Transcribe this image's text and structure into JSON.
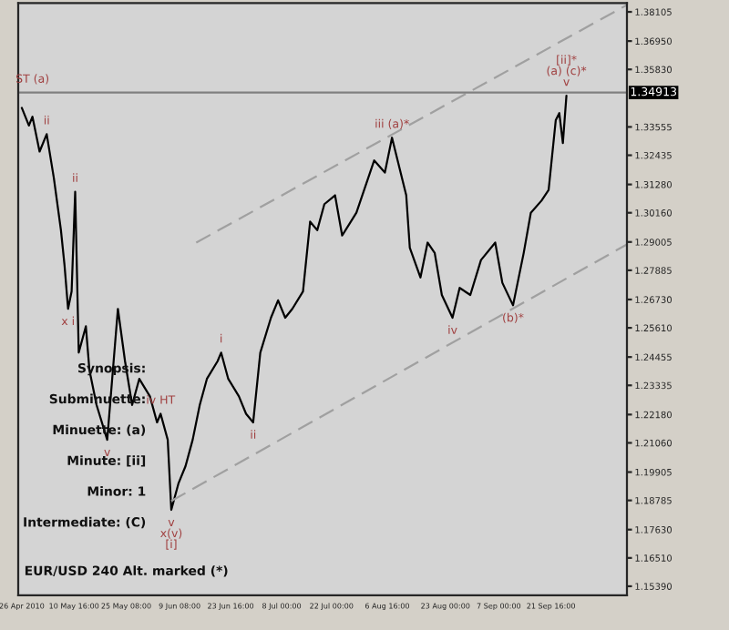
{
  "chart_data": {
    "type": "line",
    "x": [
      "2010-04-26",
      "2010-04-28",
      "2010-04-29",
      "2010-05-01",
      "2010-05-03",
      "2010-05-05",
      "2010-05-07",
      "2010-05-08",
      "2010-05-09",
      "2010-05-10",
      "2010-05-11",
      "2010-05-12",
      "2010-05-14",
      "2010-05-15",
      "2010-05-17",
      "2010-05-20",
      "2010-05-23",
      "2010-05-25",
      "2010-05-27",
      "2010-05-29",
      "2010-06-01",
      "2010-06-03",
      "2010-06-04",
      "2010-06-06",
      "2010-06-07",
      "2010-06-09",
      "2010-06-11",
      "2010-06-13",
      "2010-06-15",
      "2010-06-17",
      "2010-06-20",
      "2010-06-21",
      "2010-06-23",
      "2010-06-26",
      "2010-06-28",
      "2010-06-30",
      "2010-07-02",
      "2010-07-05",
      "2010-07-07",
      "2010-07-09",
      "2010-07-11",
      "2010-07-14",
      "2010-07-16",
      "2010-07-18",
      "2010-07-20",
      "2010-07-23",
      "2010-07-25",
      "2010-07-29",
      "2010-08-03",
      "2010-08-06",
      "2010-08-08",
      "2010-08-12",
      "2010-08-13",
      "2010-08-16",
      "2010-08-18",
      "2010-08-20",
      "2010-08-22",
      "2010-08-25",
      "2010-08-27",
      "2010-08-30",
      "2010-09-02",
      "2010-09-06",
      "2010-09-08",
      "2010-09-11",
      "2010-09-14",
      "2010-09-16",
      "2010-09-19",
      "2010-09-21",
      "2010-09-23",
      "2010-09-24",
      "2010-09-25",
      "2010-09-26"
    ],
    "series": [
      {
        "color": "#000000",
        "values": [
          1.3431,
          1.3361,
          1.3396,
          1.3258,
          1.3327,
          1.3154,
          1.2947,
          1.2809,
          1.2636,
          1.2705,
          1.3099,
          1.2463,
          1.2567,
          1.2394,
          1.2256,
          1.2118,
          1.2636,
          1.2429,
          1.2256,
          1.2359,
          1.229,
          1.2187,
          1.2221,
          1.2118,
          1.1841,
          1.1945,
          1.2014,
          1.2118,
          1.2256,
          1.2359,
          1.2429,
          1.2463,
          1.2359,
          1.229,
          1.2221,
          1.2187,
          1.2463,
          1.2601,
          1.267,
          1.2601,
          1.2636,
          1.2705,
          1.2981,
          1.2947,
          1.305,
          1.3085,
          1.2926,
          1.3016,
          1.3223,
          1.3175,
          1.3313,
          1.3085,
          1.2878,
          1.276,
          1.2898,
          1.2857,
          1.2691,
          1.2601,
          1.2719,
          1.2691,
          1.2829,
          1.2898,
          1.2739,
          1.265,
          1.2857,
          1.3016,
          1.3064,
          1.3106,
          1.3382,
          1.341,
          1.3292,
          1.3479
        ]
      },
      {
        "type": "line",
        "color": "#a0a0a0",
        "line_style": "dashed",
        "x": [
          "2010-06-14",
          "2010-10-13"
        ],
        "values": [
          1.2898,
          1.3838
        ]
      },
      {
        "type": "line",
        "color": "#a0a0a0",
        "line_style": "dashed",
        "x": [
          "2010-06-07",
          "2010-10-13"
        ],
        "values": [
          1.1876,
          1.2891
        ]
      }
    ],
    "xlim": [
      "2010-04-25",
      "2010-10-13"
    ],
    "xticks": [
      {
        "value": "2010-04-26",
        "label": "26 Apr 2010"
      },
      {
        "value": "2010-05-10T16:00",
        "label": "10 May 16:00"
      },
      {
        "value": "2010-05-25T08:00",
        "label": "25 May 08:00"
      },
      {
        "value": "2010-06-09T08:00",
        "label": "9 Jun 08:00"
      },
      {
        "value": "2010-06-23T16:00",
        "label": "23 Jun 16:00"
      },
      {
        "value": "2010-07-08T00:00",
        "label": "8 Jul 00:00"
      },
      {
        "value": "2010-07-22T00:00",
        "label": "22 Jul 00:00"
      },
      {
        "value": "2010-08-06T16:00",
        "label": "6 Aug 16:00"
      },
      {
        "value": "2010-08-23T00:00",
        "label": "23 Aug 00:00"
      },
      {
        "value": "2010-09-07T00:00",
        "label": "7 Sep 00:00"
      },
      {
        "value": "2010-09-21T16:00",
        "label": "21 Sep 16:00"
      }
    ],
    "ylim": [
      1.1503,
      1.3845
    ],
    "yticks": [
      {
        "value": 1.1539,
        "label": "1.15390"
      },
      {
        "value": 1.1651,
        "label": "1.16510"
      },
      {
        "value": 1.1763,
        "label": "1.17630"
      },
      {
        "value": 1.18785,
        "label": "1.18785"
      },
      {
        "value": 1.19905,
        "label": "1.19905"
      },
      {
        "value": 1.2106,
        "label": "1.21060"
      },
      {
        "value": 1.2218,
        "label": "1.22180"
      },
      {
        "value": 1.23335,
        "label": "1.23335"
      },
      {
        "value": 1.24455,
        "label": "1.24455"
      },
      {
        "value": 1.2561,
        "label": "1.25610"
      },
      {
        "value": 1.2673,
        "label": "1.26730"
      },
      {
        "value": 1.27885,
        "label": "1.27885"
      },
      {
        "value": 1.29005,
        "label": "1.29005"
      },
      {
        "value": 1.3016,
        "label": "1.30160"
      },
      {
        "value": 1.3128,
        "label": "1.31280"
      },
      {
        "value": 1.32435,
        "label": "1.32435"
      },
      {
        "value": 1.33555,
        "label": "1.33555"
      },
      {
        "value": 1.3583,
        "label": "1.35830"
      },
      {
        "value": 1.3695,
        "label": "1.36950"
      },
      {
        "value": 1.38105,
        "label": "1.38105"
      }
    ],
    "ref_lines": [
      {
        "axis": "y",
        "value": 1.34913,
        "label": "1.34913",
        "color": "#808080"
      }
    ],
    "grid": false,
    "legend": false,
    "annotations": [
      {
        "text": "ST (a)",
        "x": "2010-04-29",
        "y": 1.34913
      },
      {
        "text": "ii",
        "x": "2010-05-03",
        "y": 1.3327
      },
      {
        "text": "ii",
        "x": "2010-05-11",
        "y": 1.3099
      },
      {
        "text": "x i",
        "x": "2010-05-09",
        "y": 1.2636
      },
      {
        "text": "v",
        "x": "2010-05-20",
        "y": 1.2118
      },
      {
        "text": "iv HT",
        "x": "2010-06-04",
        "y": 1.2221
      },
      {
        "text": "v\nx(v)\n[i]",
        "x": "2010-06-07",
        "y": 1.1841
      },
      {
        "text": "i",
        "x": "2010-06-21",
        "y": 1.2463
      },
      {
        "text": "ii",
        "x": "2010-06-30",
        "y": 1.2187
      },
      {
        "text": "iii (a)*",
        "x": "2010-08-08",
        "y": 1.3313
      },
      {
        "text": "iv",
        "x": "2010-08-25",
        "y": 1.2601
      },
      {
        "text": "(b)*",
        "x": "2010-09-11",
        "y": 1.265
      },
      {
        "text": "[ii]*\n(a) (c)*\nv",
        "x": "2010-09-26",
        "y": 1.3479
      },
      "Synopsis:",
      "Subminuette:",
      "Minuette: (a)",
      "Minute: [ii]",
      "Minor: 1",
      "Intermediate: (C)",
      "EUR/USD 240 Alt. marked (*)"
    ]
  }
}
